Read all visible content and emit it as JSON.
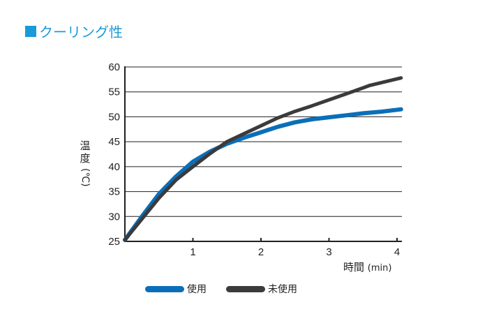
{
  "title": "クーリング性",
  "chart_data": {
    "type": "line",
    "title": "クーリング性",
    "xlabel": "時間",
    "xlabel_unit": "(min)",
    "ylabel": "温度",
    "ylabel_unit": "(℃)",
    "xlim": [
      0,
      4.06
    ],
    "ylim": [
      25,
      60
    ],
    "x_ticks": [
      "1",
      "2",
      "3",
      "4"
    ],
    "y_ticks": [
      "25",
      "30",
      "35",
      "40",
      "45",
      "50",
      "55",
      "60"
    ],
    "grid": "horizontal",
    "legend_position": "bottom",
    "series": [
      {
        "name": "使用",
        "color": "#0a6fb8",
        "x": [
          0,
          0.25,
          0.5,
          0.75,
          1.0,
          1.25,
          1.5,
          1.75,
          2.0,
          2.25,
          2.5,
          2.75,
          3.0,
          3.25,
          3.5,
          3.75,
          4.06
        ],
        "values": [
          25.3,
          30.0,
          34.5,
          38.0,
          41.0,
          43.0,
          44.6,
          45.8,
          46.9,
          48.0,
          48.9,
          49.5,
          49.9,
          50.3,
          50.7,
          51.0,
          51.5
        ]
      },
      {
        "name": "未使用",
        "color": "#3c3a3b",
        "x": [
          0,
          0.25,
          0.5,
          0.75,
          1.0,
          1.25,
          1.5,
          1.75,
          2.0,
          2.25,
          2.5,
          2.75,
          3.0,
          3.25,
          3.5,
          3.6,
          4.06
        ],
        "values": [
          25.3,
          29.5,
          33.7,
          37.3,
          40.0,
          42.6,
          45.0,
          46.6,
          48.2,
          49.8,
          51.1,
          52.2,
          53.4,
          54.6,
          55.8,
          56.3,
          57.8
        ]
      }
    ]
  },
  "axis": {
    "ylabel": "温度",
    "ylabel_unit": "(℃)",
    "xlabel": "時間",
    "xlabel_unit": "(min)"
  },
  "legend": [
    {
      "label": "使用",
      "color": "#0a6fb8"
    },
    {
      "label": "未使用",
      "color": "#3c3a3b"
    }
  ]
}
